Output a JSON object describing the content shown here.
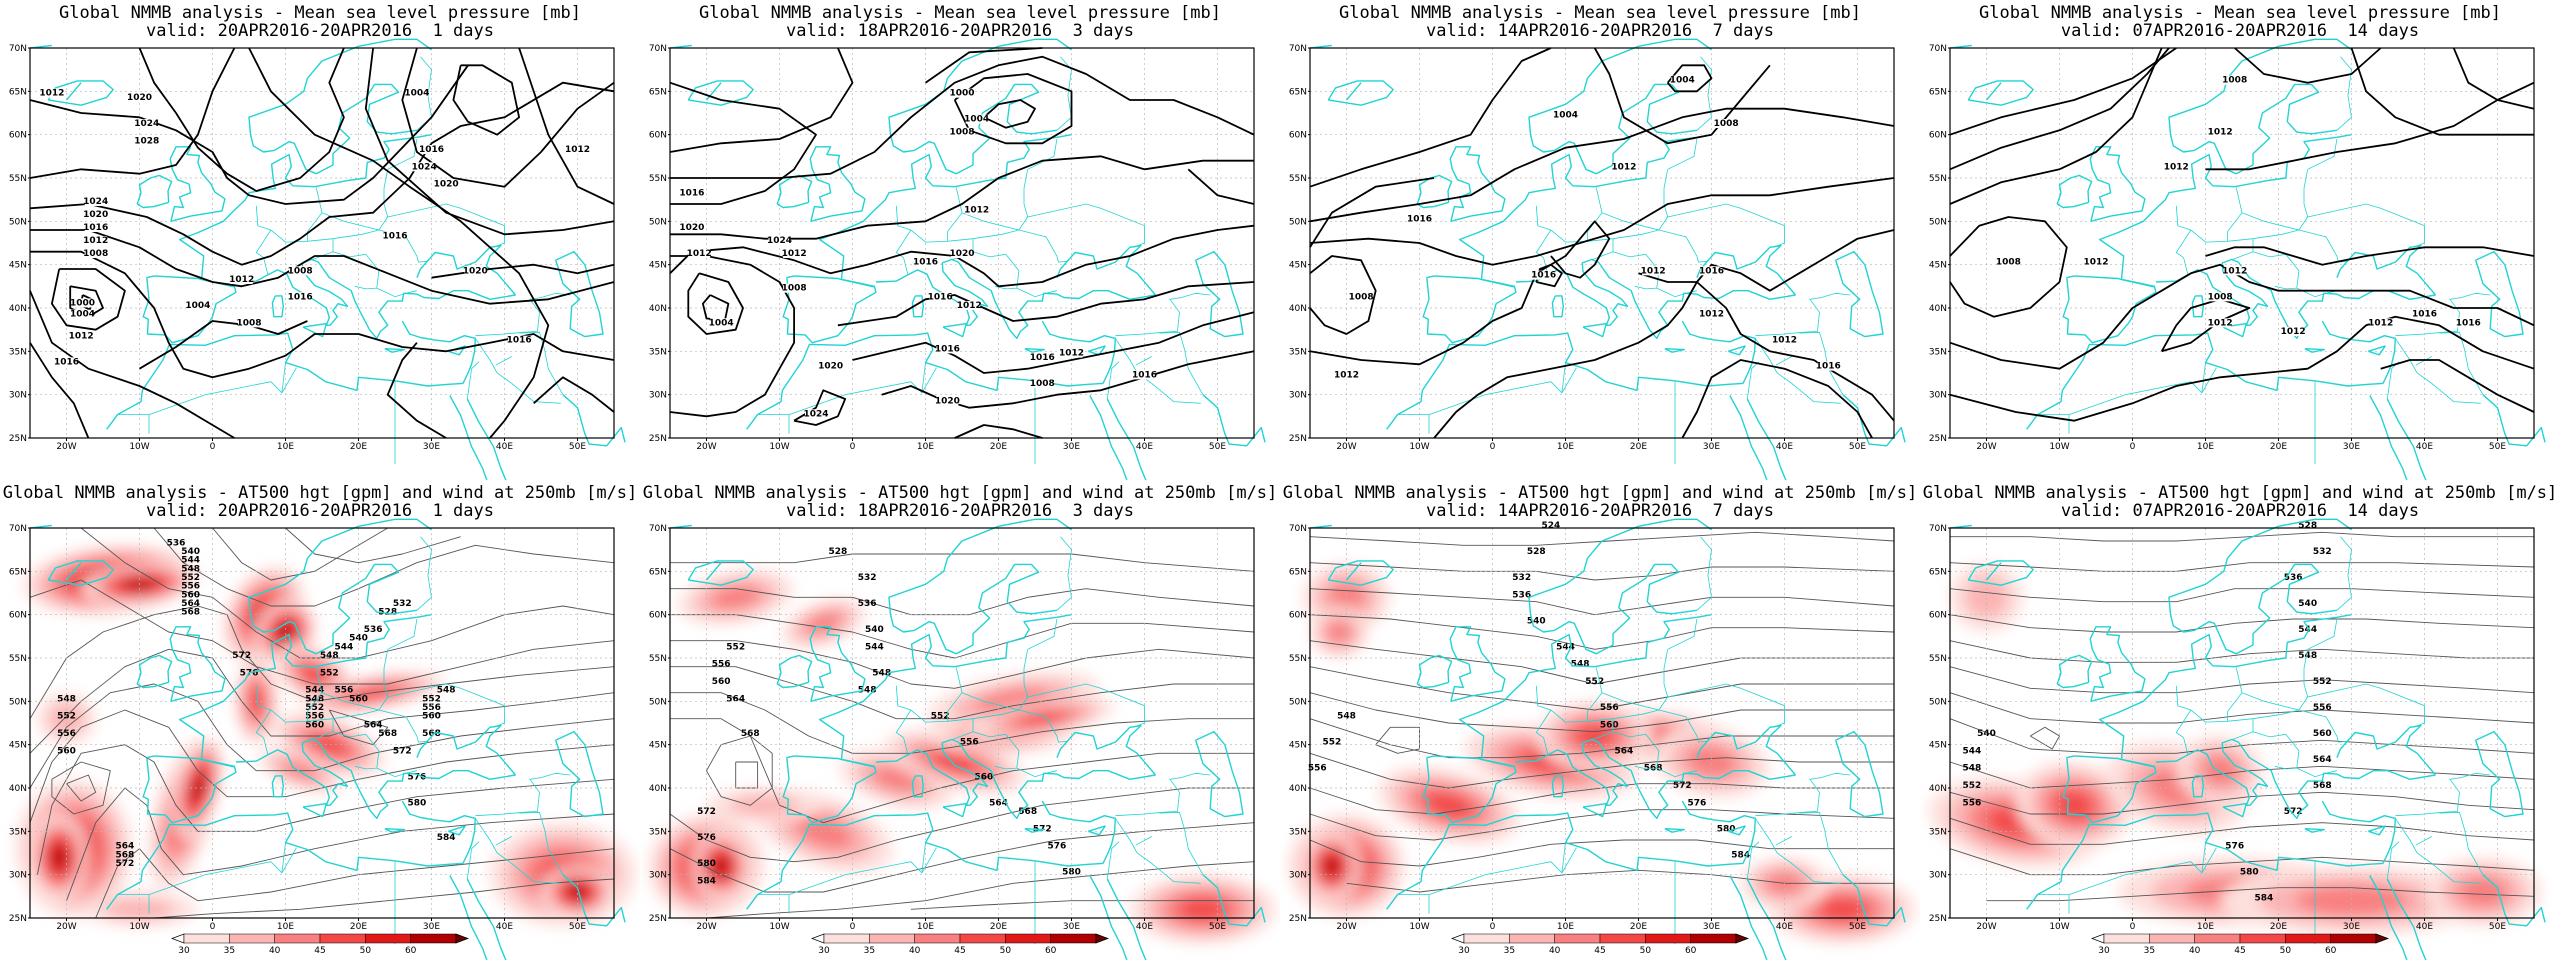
{
  "panels": [
    {
      "title": "Global NMMB analysis - Mean sea level pressure [mb]",
      "valid": "valid: 20APR2016-20APR2016  1 days",
      "kind": "mslp"
    },
    {
      "title": "Global NMMB analysis - Mean sea level pressure [mb]",
      "valid": "valid: 18APR2016-20APR2016  3 days",
      "kind": "mslp"
    },
    {
      "title": "Global NMMB analysis - Mean sea level pressure [mb]",
      "valid": "valid: 14APR2016-20APR2016  7 days",
      "kind": "mslp"
    },
    {
      "title": "Global NMMB analysis - Mean sea level pressure [mb]",
      "valid": "valid: 07APR2016-20APR2016  14 days",
      "kind": "mslp"
    },
    {
      "title": "Global NMMB analysis - AT500 hgt [gpm] and wind at 250mb [m/s]",
      "valid": "valid: 20APR2016-20APR2016  1 days",
      "kind": "z500"
    },
    {
      "title": "Global NMMB analysis - AT500 hgt [gpm] and wind at 250mb [m/s]",
      "valid": "valid: 18APR2016-20APR2016  3 days",
      "kind": "z500"
    },
    {
      "title": "Global NMMB analysis - AT500 hgt [gpm] and wind at 250mb [m/s]",
      "valid": "valid: 14APR2016-20APR2016  7 days",
      "kind": "z500"
    },
    {
      "title": "Global NMMB analysis - AT500 hgt [gpm] and wind at 250mb [m/s]",
      "valid": "valid: 07APR2016-20APR2016  14 days",
      "kind": "z500"
    }
  ],
  "lat_labels": [
    "70N",
    "65N",
    "60N",
    "55N",
    "50N",
    "45N",
    "40N",
    "35N",
    "30N",
    "25N"
  ],
  "lon_labels": [
    "20W",
    "10W",
    "0",
    "10E",
    "20E",
    "30E",
    "40E",
    "50E"
  ],
  "colorbar_labels": [
    "30",
    "35",
    "40",
    "45",
    "50",
    "60"
  ],
  "colors": {
    "coast": "#22d3d3",
    "wind_colors": [
      "#fde0dd",
      "#fbb4b4",
      "#f88080",
      "#f24848",
      "#e01818",
      "#b00000"
    ]
  },
  "mslp_labels": [
    [
      "1012",
      "1020",
      "1024",
      "1028",
      "1024",
      "1020",
      "1016",
      "1012",
      "1008",
      "1000",
      "1004",
      "1012",
      "1016",
      "1004",
      "1008",
      "1004",
      "1016",
      "1024",
      "1020",
      "1016",
      "1008",
      "1012",
      "1016",
      "1020",
      "1012",
      "1016"
    ],
    [
      "1016",
      "1020",
      "1012",
      "1024",
      "1000",
      "1004",
      "1008",
      "1012",
      "1020",
      "1016",
      "1012",
      "1008",
      "1004",
      "1024",
      "1020",
      "1016",
      "1012",
      "1016",
      "1020",
      "1016",
      "1008",
      "1012",
      "1016"
    ],
    [
      "1004",
      "1004",
      "1008",
      "1012",
      "1016",
      "1008",
      "1012",
      "1016",
      "1012",
      "1016",
      "1012",
      "1016",
      "1012"
    ],
    [
      "1008",
      "1008",
      "1012",
      "1012",
      "1012",
      "1008",
      "1012",
      "1012",
      "1012",
      "1012",
      "1016",
      "1016"
    ]
  ],
  "z500_labels": [
    [
      "536",
      "540",
      "544",
      "548",
      "552",
      "556",
      "560",
      "564",
      "568",
      "548",
      "552",
      "556",
      "560",
      "572",
      "576",
      "564",
      "568",
      "572",
      "544",
      "548",
      "552",
      "556",
      "560",
      "548",
      "552",
      "556",
      "560",
      "568",
      "528",
      "532",
      "536",
      "540",
      "544",
      "548",
      "552",
      "556",
      "560",
      "564",
      "568",
      "572",
      "576",
      "580",
      "584"
    ],
    [
      "528",
      "532",
      "536",
      "540",
      "544",
      "548",
      "552",
      "556",
      "560",
      "564",
      "568",
      "572",
      "576",
      "580",
      "584",
      "548",
      "552",
      "556",
      "560",
      "564",
      "568",
      "572",
      "576",
      "580"
    ],
    [
      "524",
      "528",
      "532",
      "536",
      "540",
      "544",
      "548",
      "552",
      "556",
      "560",
      "564",
      "568",
      "572",
      "576",
      "580",
      "584",
      "548",
      "552",
      "556"
    ],
    [
      "528",
      "532",
      "536",
      "540",
      "544",
      "548",
      "552",
      "556",
      "560",
      "564",
      "568",
      "572",
      "576",
      "580",
      "584",
      "540",
      "544",
      "548",
      "552",
      "556"
    ]
  ]
}
